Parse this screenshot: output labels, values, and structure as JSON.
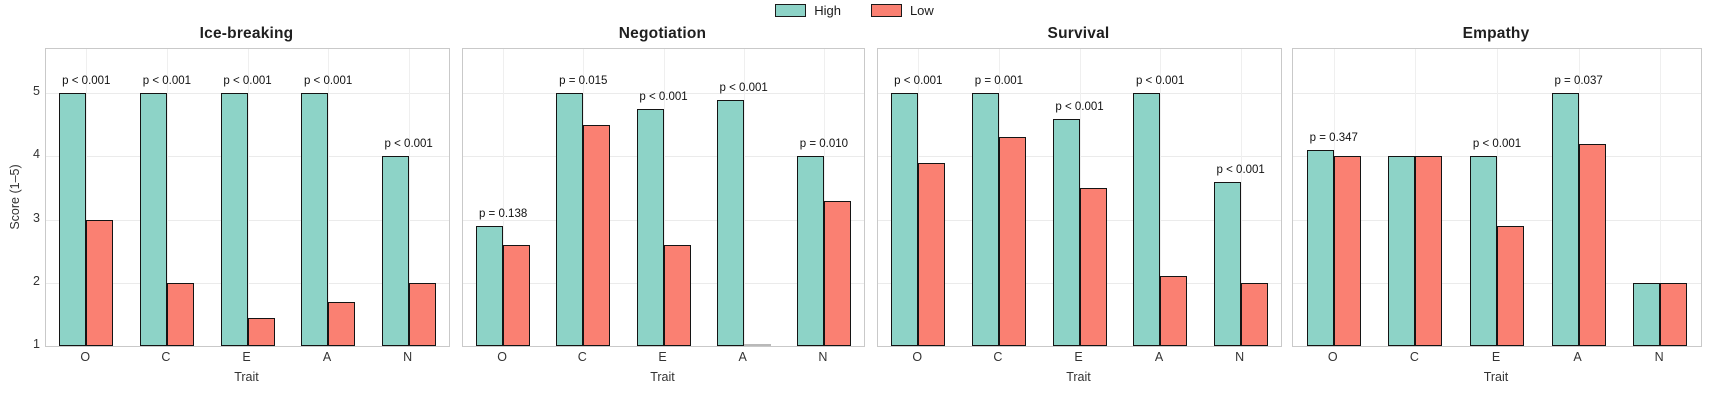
{
  "legend": {
    "items": [
      {
        "label": "High",
        "color": "#8DD3C7"
      },
      {
        "label": "Low",
        "color": "#FA8072"
      }
    ]
  },
  "axes": {
    "ylabel": "Score (1–5)",
    "xlabel": "Trait",
    "yticks": [
      1,
      2,
      3,
      4,
      5
    ],
    "ylim": [
      1,
      5.7
    ],
    "grid": "both"
  },
  "colors": {
    "high": "#8DD3C7",
    "low": "#FA8072",
    "bar_edge": "#141414",
    "grid": "#ebebeb",
    "panel_border": "#c9c9c9"
  },
  "chart_data": {
    "type": "bar",
    "categories": [
      "O",
      "C",
      "E",
      "A",
      "N"
    ],
    "ylabel": "Score (1–5)",
    "xlabel": "Trait",
    "ylim": [
      1,
      5.7
    ],
    "legend_position": "top-center",
    "panels": [
      {
        "title": "Ice-breaking",
        "series": [
          {
            "name": "High",
            "values": [
              5.0,
              5.0,
              5.0,
              5.0,
              4.0
            ]
          },
          {
            "name": "Low",
            "values": [
              3.0,
              2.0,
              1.45,
              1.7,
              2.0
            ]
          }
        ],
        "p_labels": [
          "p < 0.001",
          "p < 0.001",
          "p < 0.001",
          "p < 0.001",
          "p < 0.001"
        ]
      },
      {
        "title": "Negotiation",
        "series": [
          {
            "name": "High",
            "values": [
              2.9,
              5.0,
              4.75,
              4.9,
              4.0
            ]
          },
          {
            "name": "Low",
            "values": [
              2.6,
              4.5,
              2.6,
              1.0,
              3.3
            ]
          }
        ],
        "p_labels": [
          "p = 0.138",
          "p = 0.015",
          "p < 0.001",
          "p < 0.001",
          "p = 0.010"
        ]
      },
      {
        "title": "Survival",
        "series": [
          {
            "name": "High",
            "values": [
              5.0,
              5.0,
              4.6,
              5.0,
              3.6
            ]
          },
          {
            "name": "Low",
            "values": [
              3.9,
              4.3,
              3.5,
              2.1,
              2.0
            ]
          }
        ],
        "p_labels": [
          "p < 0.001",
          "p = 0.001",
          "p < 0.001",
          "p < 0.001",
          "p < 0.001"
        ]
      },
      {
        "title": "Empathy",
        "series": [
          {
            "name": "High",
            "values": [
              4.1,
              4.0,
              4.0,
              5.0,
              2.0
            ]
          },
          {
            "name": "Low",
            "values": [
              4.0,
              4.0,
              2.9,
              4.2,
              2.0
            ]
          }
        ],
        "p_labels": [
          "p = 0.347",
          "",
          "p < 0.001",
          "p = 0.037",
          ""
        ]
      }
    ]
  }
}
